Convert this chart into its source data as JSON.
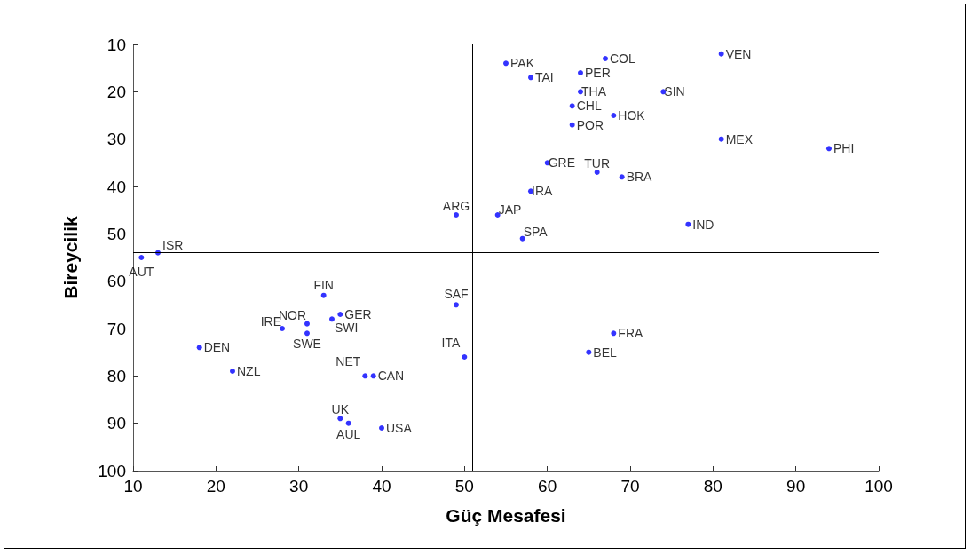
{
  "chart_data": {
    "type": "scatter",
    "xlabel": "Güç Mesafesi",
    "ylabel": "Bireycilik",
    "x": [
      55,
      67,
      81,
      64,
      58,
      64,
      74,
      63,
      68,
      63,
      81,
      94,
      60,
      66,
      69,
      58,
      49,
      54,
      77,
      57,
      13,
      11,
      33,
      49,
      35,
      31,
      34,
      28,
      31,
      68,
      18,
      65,
      50,
      22,
      38,
      39,
      35,
      36,
      40
    ],
    "values": [
      14,
      13,
      12,
      16,
      17,
      20,
      20,
      23,
      25,
      27,
      30,
      32,
      35,
      37,
      38,
      41,
      46,
      46,
      48,
      51,
      54,
      55,
      63,
      65,
      67,
      69,
      68,
      70,
      71,
      71,
      74,
      75,
      76,
      79,
      80,
      80,
      89,
      90,
      91
    ],
    "value_labels": [
      "PAK",
      "COL",
      "VEN",
      "PER",
      "TAI",
      "THA",
      "SIN",
      "CHL",
      "HOK",
      "POR",
      "MEX",
      "PHI",
      "GRE",
      "TUR",
      "BRA",
      "IRA",
      "ARG",
      "JAP",
      "IND",
      "SPA",
      "ISR",
      "AUT",
      "FIN",
      "SAF",
      "GER",
      "NOR",
      "SWI",
      "IRE",
      "SWE",
      "FRA",
      "DEN",
      "BEL",
      "ITA",
      "NZL",
      "NET",
      "CAN",
      "UK",
      "AUL",
      "USA"
    ],
    "color": "#0000ff",
    "marker": "circle",
    "xlim": [
      10,
      100
    ],
    "xticks": [
      10,
      20,
      30,
      40,
      50,
      60,
      70,
      80,
      90,
      100
    ],
    "ylim": [
      100,
      10
    ],
    "yticks": [
      10,
      20,
      30,
      40,
      50,
      60,
      70,
      80,
      90,
      100
    ],
    "grid": false,
    "ref_lines": [
      {
        "axis": "x",
        "value": 51,
        "color": "#000000"
      },
      {
        "axis": "y",
        "value": 54,
        "color": "#000000"
      }
    ]
  }
}
